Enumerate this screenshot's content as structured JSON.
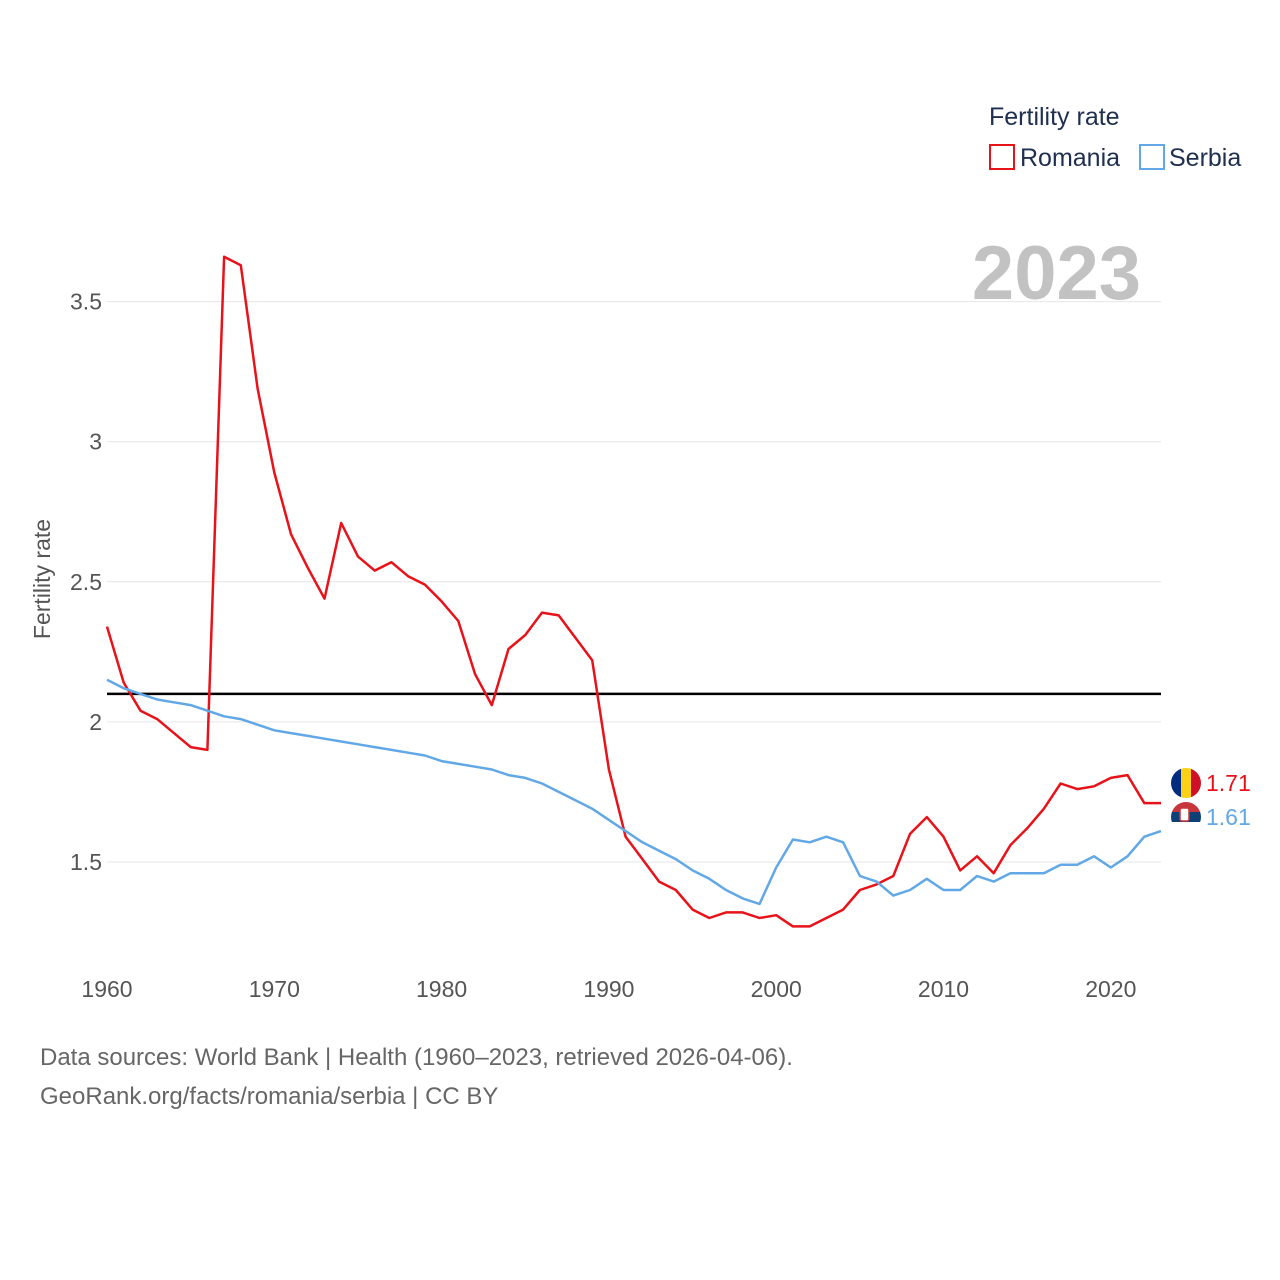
{
  "colors": {
    "romania": "#e8121a",
    "serbia": "#62a8e6",
    "reference_line": "#000000",
    "grid": "#e6e6e6"
  },
  "chart_data": {
    "type": "line",
    "title": "",
    "year_label": "2023",
    "xlabel": "",
    "ylabel": "Fertility rate",
    "xlim": [
      1960,
      2023
    ],
    "ylim": [
      1.15,
      3.72
    ],
    "x_ticks": [
      "1960",
      "1970",
      "1980",
      "1990",
      "2000",
      "2010",
      "2020"
    ],
    "y_ticks": [
      "1.5",
      "2",
      "2.5",
      "3",
      "3.5"
    ],
    "grid": true,
    "legend": {
      "title": "Fertility rate",
      "position": "top-right"
    },
    "reference_line": {
      "y": 2.1
    },
    "x": [
      1960,
      1961,
      1962,
      1963,
      1964,
      1965,
      1966,
      1967,
      1968,
      1969,
      1970,
      1971,
      1972,
      1973,
      1974,
      1975,
      1976,
      1977,
      1978,
      1979,
      1980,
      1981,
      1982,
      1983,
      1984,
      1985,
      1986,
      1987,
      1988,
      1989,
      1990,
      1991,
      1992,
      1993,
      1994,
      1995,
      1996,
      1997,
      1998,
      1999,
      2000,
      2001,
      2002,
      2003,
      2004,
      2005,
      2006,
      2007,
      2008,
      2009,
      2010,
      2011,
      2012,
      2013,
      2014,
      2015,
      2016,
      2017,
      2018,
      2019,
      2020,
      2021,
      2022,
      2023
    ],
    "series": [
      {
        "name": "Romania",
        "color": "#e8121a",
        "end_label": "1.71",
        "values": [
          2.34,
          2.14,
          2.04,
          2.01,
          1.96,
          1.91,
          1.9,
          3.66,
          3.63,
          3.19,
          2.89,
          2.67,
          2.55,
          2.44,
          2.71,
          2.59,
          2.54,
          2.57,
          2.52,
          2.49,
          2.43,
          2.36,
          2.17,
          2.06,
          2.26,
          2.31,
          2.39,
          2.38,
          2.3,
          2.22,
          1.83,
          1.59,
          1.51,
          1.43,
          1.4,
          1.33,
          1.3,
          1.32,
          1.32,
          1.3,
          1.31,
          1.27,
          1.27,
          1.3,
          1.33,
          1.4,
          1.42,
          1.45,
          1.6,
          1.66,
          1.59,
          1.47,
          1.52,
          1.46,
          1.56,
          1.62,
          1.69,
          1.78,
          1.76,
          1.77,
          1.8,
          1.81,
          1.71,
          1.71
        ]
      },
      {
        "name": "Serbia",
        "color": "#62a8e6",
        "end_label": "1.61",
        "values": [
          2.15,
          2.12,
          2.1,
          2.08,
          2.07,
          2.06,
          2.04,
          2.02,
          2.01,
          1.99,
          1.97,
          1.96,
          1.95,
          1.94,
          1.93,
          1.92,
          1.91,
          1.9,
          1.89,
          1.88,
          1.86,
          1.85,
          1.84,
          1.83,
          1.81,
          1.8,
          1.78,
          1.75,
          1.72,
          1.69,
          1.65,
          1.61,
          1.57,
          1.54,
          1.51,
          1.47,
          1.44,
          1.4,
          1.37,
          1.35,
          1.48,
          1.58,
          1.57,
          1.59,
          1.57,
          1.45,
          1.43,
          1.38,
          1.4,
          1.44,
          1.4,
          1.4,
          1.45,
          1.43,
          1.46,
          1.46,
          1.46,
          1.49,
          1.49,
          1.52,
          1.48,
          1.52,
          1.59,
          1.61
        ]
      }
    ]
  },
  "footer": {
    "line1": "Data sources: World Bank | Health (1960–2023, retrieved 2026-04-06).",
    "line2": "GeoRank.org/facts/romania/serbia | CC BY"
  }
}
